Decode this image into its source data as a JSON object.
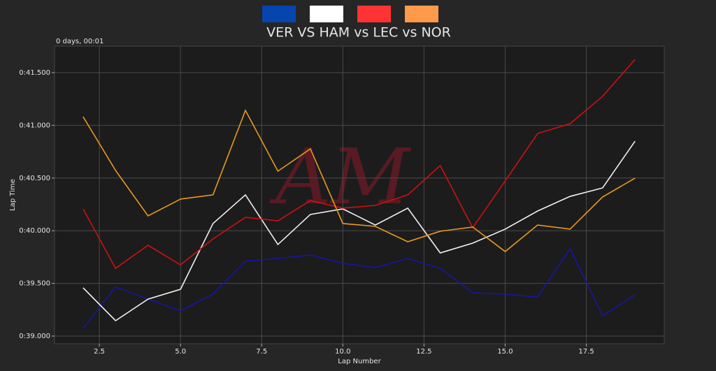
{
  "chart_data": {
    "type": "line",
    "title": "VER VS HAM vs LEC vs NOR",
    "annotation": "0 days, 00:01",
    "watermark": "AM",
    "x_label": "Lap Number",
    "y_label": "Lap Time",
    "x": [
      2,
      3,
      4,
      5,
      6,
      7,
      8,
      9,
      10,
      11,
      12,
      13,
      14,
      15,
      16,
      17,
      18,
      19
    ],
    "series": [
      {
        "color": "#1616a8",
        "legend_color": "#0645ad",
        "values": [
          39.073,
          39.464,
          39.351,
          39.239,
          39.398,
          39.71,
          39.736,
          39.769,
          39.69,
          39.65,
          39.736,
          39.643,
          39.411,
          39.398,
          39.371,
          39.829,
          39.192,
          39.391
        ]
      },
      {
        "color": "#f0f0f0",
        "legend_color": "#ffffff",
        "values": [
          39.458,
          39.146,
          39.351,
          39.444,
          40.068,
          40.34,
          39.869,
          40.154,
          40.207,
          40.054,
          40.214,
          39.789,
          39.882,
          40.015,
          40.187,
          40.326,
          40.406,
          40.85
        ]
      },
      {
        "color": "#d01010",
        "legend_color": "#ff3333",
        "values": [
          40.207,
          39.643,
          39.862,
          39.676,
          39.922,
          40.127,
          40.094,
          40.286,
          40.214,
          40.24,
          40.34,
          40.618,
          40.028,
          40.472,
          40.923,
          41.016,
          41.275,
          41.626
        ]
      },
      {
        "color": "#e89a1c",
        "legend_color": "#ff9a4a",
        "values": [
          41.082,
          40.572,
          40.141,
          40.3,
          40.34,
          41.142,
          40.565,
          40.777,
          40.068,
          40.041,
          39.895,
          39.995,
          40.035,
          39.802,
          40.054,
          40.015,
          40.32,
          40.499
        ]
      }
    ],
    "xlim": [
      1.12,
      19.9
    ],
    "ylim": [
      38.927,
      41.752
    ],
    "xticks": [
      2.5,
      {
        "value": 5,
        "label": "5.0"
      },
      7.5,
      {
        "value": 10,
        "label": "10.0"
      },
      12.5,
      {
        "value": 15,
        "label": "15.0"
      },
      17.5
    ],
    "yticks": [
      {
        "value": 39,
        "label": "0:39.000"
      },
      {
        "value": 39.5,
        "label": "0:39.500"
      },
      {
        "value": 40,
        "label": "0:40.000"
      },
      {
        "value": 40.5,
        "label": "0:40.500"
      },
      {
        "value": 41,
        "label": "0:41.000"
      },
      {
        "value": 41.5,
        "label": "0:41.500"
      }
    ],
    "grid": true
  }
}
